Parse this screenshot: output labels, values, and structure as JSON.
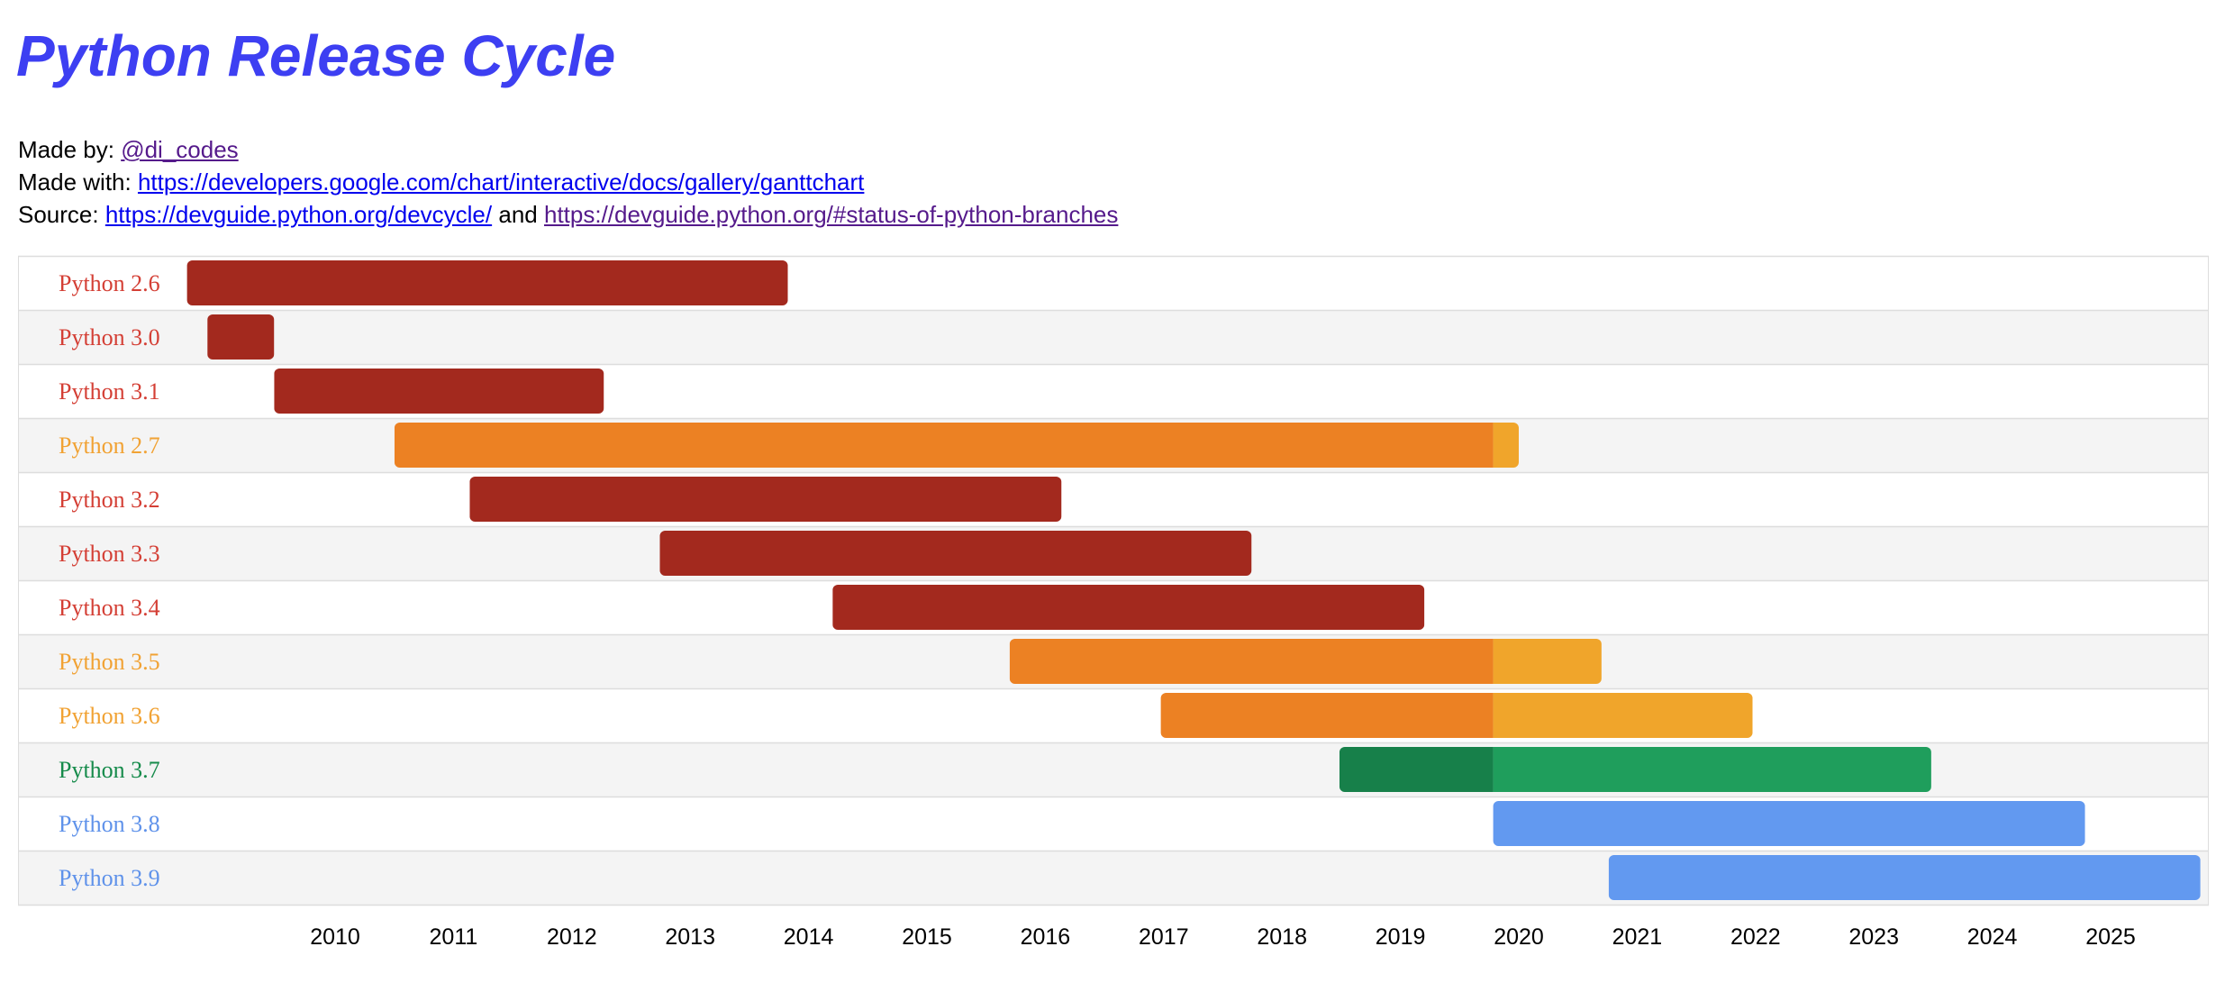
{
  "page": {
    "title": "Python Release Cycle",
    "made_by_label": "Made by:",
    "made_by_link": "@di_codes",
    "made_with_label": "Made with:",
    "made_with_link": "https://developers.google.com/chart/interactive/docs/gallery/ganttchart",
    "source_label": "Source:",
    "source_link_1": "https://devguide.python.org/devcycle/",
    "source_and": "and",
    "source_link_2": "https://devguide.python.org/#status-of-python-branches"
  },
  "colors": {
    "eol_bar": "#a3291e",
    "bugfix_bar": "#ec8123",
    "security_orange": "#f0a52b",
    "bugfix_green": "#17804a",
    "security_green": "#1f9e5c",
    "feature_blue": "#6299f0",
    "label_red": "#d43f35",
    "label_orange": "#f1a233",
    "label_green": "#168b4b",
    "label_blue": "#5f92ea",
    "row_alt": "#f4f4f4",
    "grid_line": "#dddddd"
  },
  "chart_data": {
    "type": "gantt",
    "x_axis": {
      "ticks": [
        "2010",
        "2011",
        "2012",
        "2013",
        "2014",
        "2015",
        "2016",
        "2017",
        "2018",
        "2019",
        "2020",
        "2021",
        "2022",
        "2023",
        "2024",
        "2025"
      ],
      "range": [
        "2008-06-01",
        "2025-10-01"
      ]
    },
    "rows": [
      {
        "label": "Python 2.6",
        "label_color": "label_red",
        "segments": [
          {
            "start": "2008-10-01",
            "end": "2013-10-29",
            "color": "eol_bar"
          }
        ]
      },
      {
        "label": "Python 3.0",
        "label_color": "label_red",
        "segments": [
          {
            "start": "2008-12-03",
            "end": "2009-06-27",
            "color": "eol_bar"
          }
        ]
      },
      {
        "label": "Python 3.1",
        "label_color": "label_red",
        "segments": [
          {
            "start": "2009-06-27",
            "end": "2012-04-09",
            "color": "eol_bar"
          }
        ]
      },
      {
        "label": "Python 2.7",
        "label_color": "label_orange",
        "segments": [
          {
            "start": "2010-07-03",
            "end": "2019-10-14",
            "color": "bugfix_bar"
          },
          {
            "start": "2019-10-14",
            "end": "2020-01-01",
            "color": "security_orange"
          }
        ]
      },
      {
        "label": "Python 3.2",
        "label_color": "label_red",
        "segments": [
          {
            "start": "2011-02-20",
            "end": "2016-02-20",
            "color": "eol_bar"
          }
        ]
      },
      {
        "label": "Python 3.3",
        "label_color": "label_red",
        "segments": [
          {
            "start": "2012-09-29",
            "end": "2017-09-29",
            "color": "eol_bar"
          }
        ]
      },
      {
        "label": "Python 3.4",
        "label_color": "label_red",
        "segments": [
          {
            "start": "2014-03-16",
            "end": "2019-03-16",
            "color": "eol_bar"
          }
        ]
      },
      {
        "label": "Python 3.5",
        "label_color": "label_orange",
        "segments": [
          {
            "start": "2015-09-13",
            "end": "2019-10-14",
            "color": "bugfix_bar"
          },
          {
            "start": "2019-10-14",
            "end": "2020-09-13",
            "color": "security_orange"
          }
        ]
      },
      {
        "label": "Python 3.6",
        "label_color": "label_orange",
        "segments": [
          {
            "start": "2016-12-23",
            "end": "2019-10-14",
            "color": "bugfix_bar"
          },
          {
            "start": "2019-10-14",
            "end": "2021-12-23",
            "color": "security_orange"
          }
        ]
      },
      {
        "label": "Python 3.7",
        "label_color": "label_green",
        "segments": [
          {
            "start": "2018-06-27",
            "end": "2019-10-14",
            "color": "bugfix_green"
          },
          {
            "start": "2019-10-14",
            "end": "2023-06-27",
            "color": "security_green"
          }
        ]
      },
      {
        "label": "Python 3.8",
        "label_color": "label_blue",
        "segments": [
          {
            "start": "2019-10-14",
            "end": "2024-10-14",
            "color": "feature_blue"
          }
        ]
      },
      {
        "label": "Python 3.9",
        "label_color": "label_blue",
        "segments": [
          {
            "start": "2020-10-05",
            "end": "2025-10-05",
            "color": "feature_blue"
          }
        ]
      }
    ]
  }
}
